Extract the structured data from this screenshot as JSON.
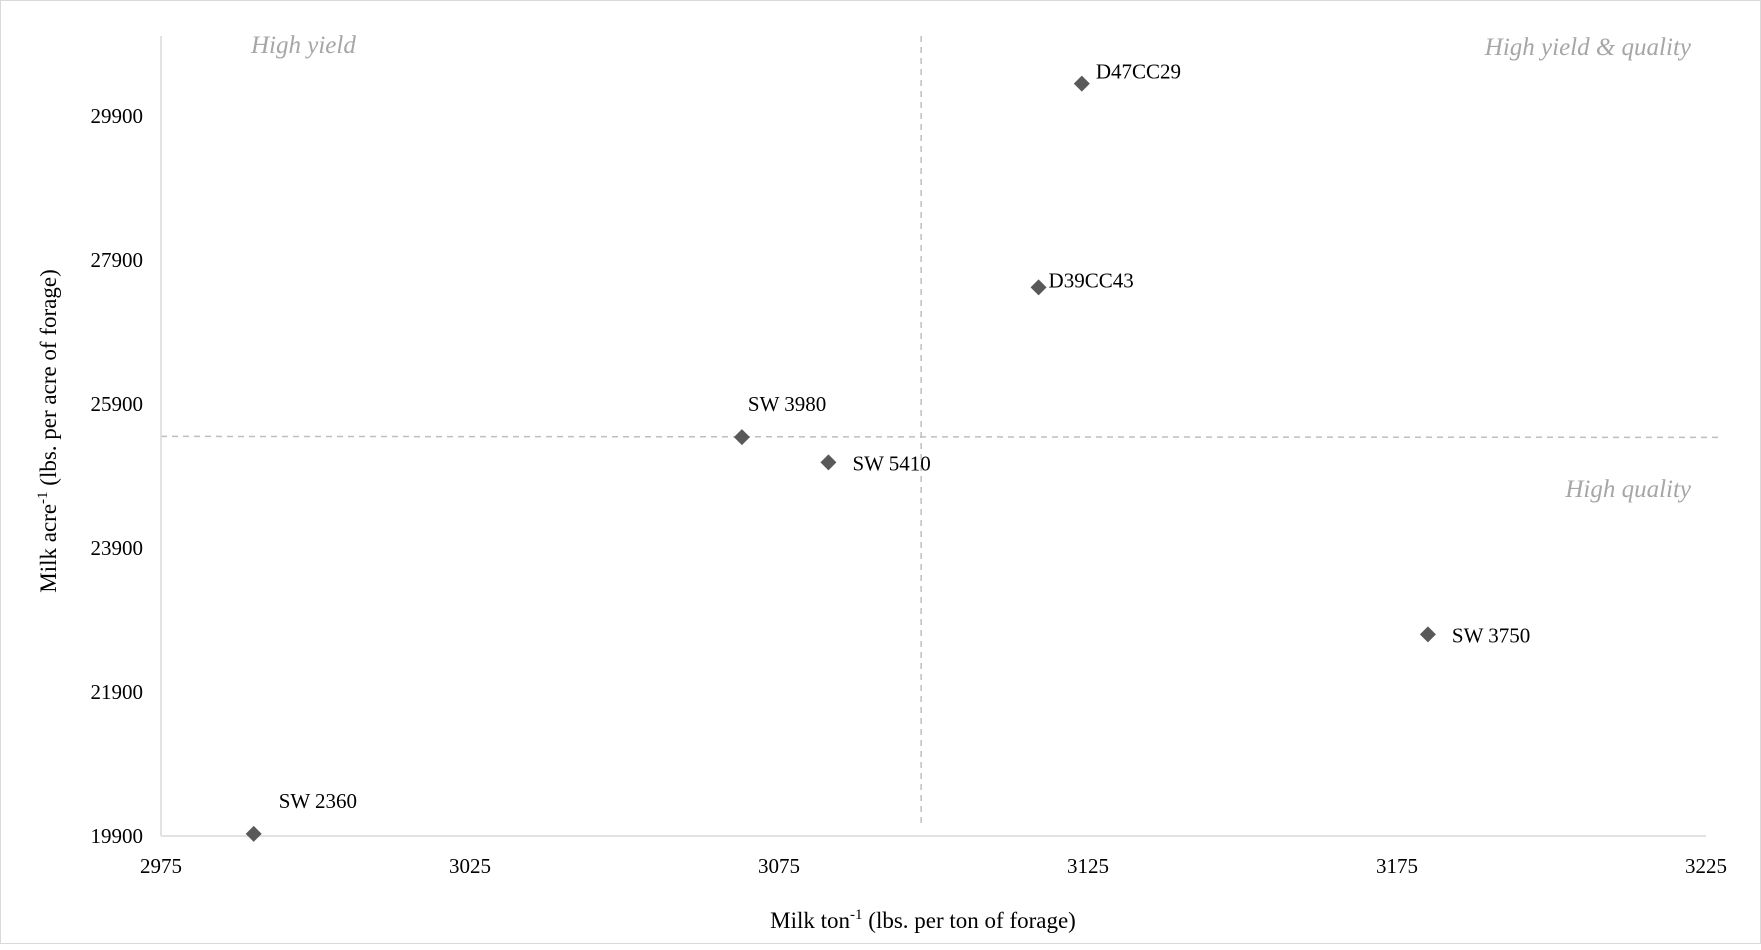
{
  "chart_data": {
    "type": "scatter",
    "xlabel": "Milk ton",
    "xlabel_sup": "-1",
    "xlabel_rest": " (lbs. per ton of forage)",
    "ylabel": "Milk acre",
    "ylabel_sup": "-1",
    "ylabel_rest": " (lbs. per acre of forage)",
    "xlim": [
      2975,
      3225
    ],
    "ylim": [
      19900,
      30900
    ],
    "x_ticks": [
      "2975",
      "3025",
      "3075",
      "3125",
      "3175",
      "3225"
    ],
    "y_ticks": [
      "19900",
      "21900",
      "23900",
      "25900",
      "27900",
      "29900"
    ],
    "reference_lines": {
      "x": 3098,
      "y": 25450
    },
    "quadrant_labels": {
      "top_left": "High yield",
      "top_right": "High yield & quality",
      "bottom_right": "High quality"
    },
    "marker": "diamond",
    "marker_color": "#595959",
    "points": [
      {
        "label": "D47CC29",
        "x": 3124,
        "y": 30350
      },
      {
        "label": "D39CC43",
        "x": 3117,
        "y": 27520
      },
      {
        "label": "SW 3980",
        "x": 3069,
        "y": 25440
      },
      {
        "label": "SW 5410",
        "x": 3083,
        "y": 25090
      },
      {
        "label": "SW 3750",
        "x": 3180,
        "y": 22700
      },
      {
        "label": "SW 2360",
        "x": 2990,
        "y": 19930
      }
    ]
  }
}
